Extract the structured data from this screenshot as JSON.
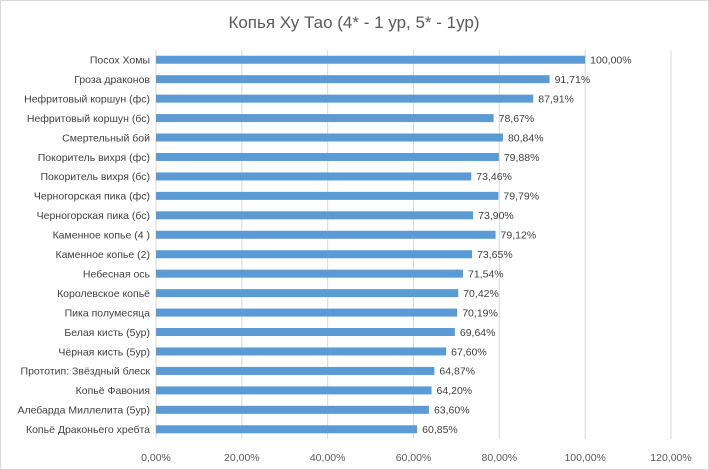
{
  "chart_data": {
    "type": "bar",
    "orientation": "horizontal",
    "title": "Копья Ху Тао (4* - 1 ур, 5* - 1ур)",
    "xlabel": "",
    "ylabel": "",
    "categories": [
      "Посох Хомы",
      "Гроза драконов",
      "Нефритовый коршун (фс)",
      "Нефритовый коршун (бс)",
      "Смертельный бой",
      "Покоритель вихря (фс)",
      "Покоритель вихря (бс)",
      "Черногорская пика (фс)",
      "Черногорская пика (бс)",
      "Каменное копье (4 )",
      "Каменное копье (2)",
      "Небесная ось",
      "Королевское копьё",
      "Пика полумесяца",
      "Белая кисть (5ур)",
      "Чёрная кисть (5ур)",
      "Прототип: Звёздный блеск",
      "Копьё Фавония",
      "Алебарда Миллелита (5ур)",
      "Копьё Драконьего хребта"
    ],
    "values": [
      100.0,
      91.71,
      87.91,
      78.67,
      80.84,
      79.88,
      73.46,
      79.79,
      73.9,
      79.12,
      73.65,
      71.54,
      70.42,
      70.19,
      69.64,
      67.6,
      64.87,
      64.2,
      63.6,
      60.85
    ],
    "value_labels": [
      "100,00%",
      "91,71%",
      "87,91%",
      "78,67%",
      "80,84%",
      "79,88%",
      "73,46%",
      "79,79%",
      "73,90%",
      "79,12%",
      "73,65%",
      "71,54%",
      "70,42%",
      "70,19%",
      "69,64%",
      "67,60%",
      "64,87%",
      "64,20%",
      "63,60%",
      "60,85%"
    ],
    "xlim": [
      0,
      120
    ],
    "xticks": [
      0,
      20,
      40,
      60,
      80,
      100,
      120
    ],
    "xtick_labels": [
      "0,00%",
      "20,00%",
      "40,00%",
      "60,00%",
      "80,00%",
      "100,00%",
      "120,00%"
    ],
    "grid": true,
    "legend": false,
    "colors": {
      "bar": "#5b9bd5",
      "grid": "#d9d9d9",
      "text": "#404040",
      "title": "#595959"
    }
  }
}
